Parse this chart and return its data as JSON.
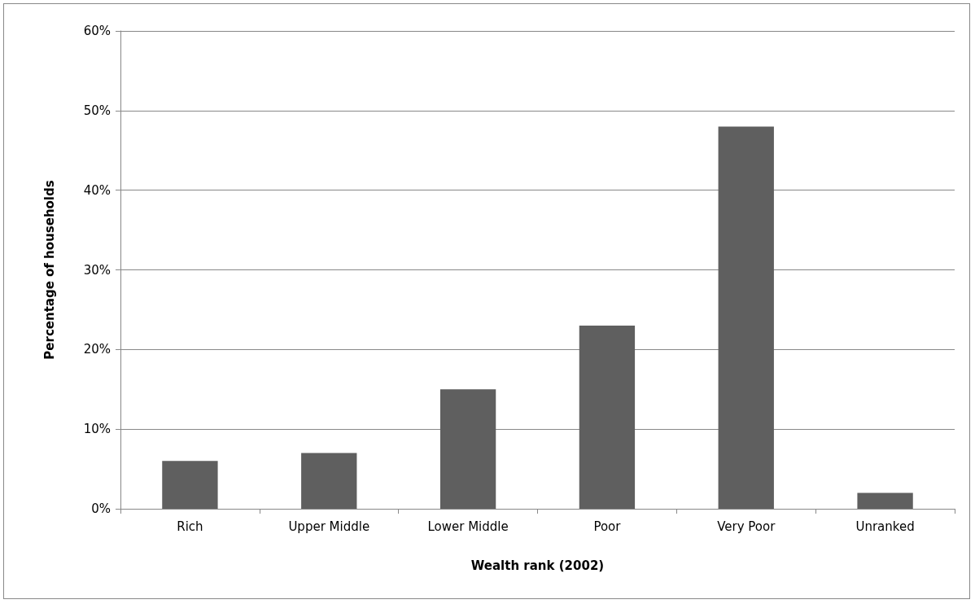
{
  "chart_data": {
    "type": "bar",
    "xlabel": "Wealth rank (2002)",
    "ylabel": "Percentage of households",
    "categories": [
      "Rich",
      "Upper Middle",
      "Lower Middle",
      "Poor",
      "Very Poor",
      "Unranked"
    ],
    "values": [
      6,
      7,
      15,
      23,
      48,
      2
    ],
    "color": "#5f5f5f",
    "ylim": [
      0,
      60
    ],
    "yticks": [
      {
        "value": 0,
        "label": "0%"
      },
      {
        "value": 10,
        "label": "10%"
      },
      {
        "value": 20,
        "label": "20%"
      },
      {
        "value": 30,
        "label": "30%"
      },
      {
        "value": 40,
        "label": "40%"
      },
      {
        "value": 50,
        "label": "50%"
      },
      {
        "value": 60,
        "label": "60%"
      }
    ],
    "grid": "y"
  }
}
